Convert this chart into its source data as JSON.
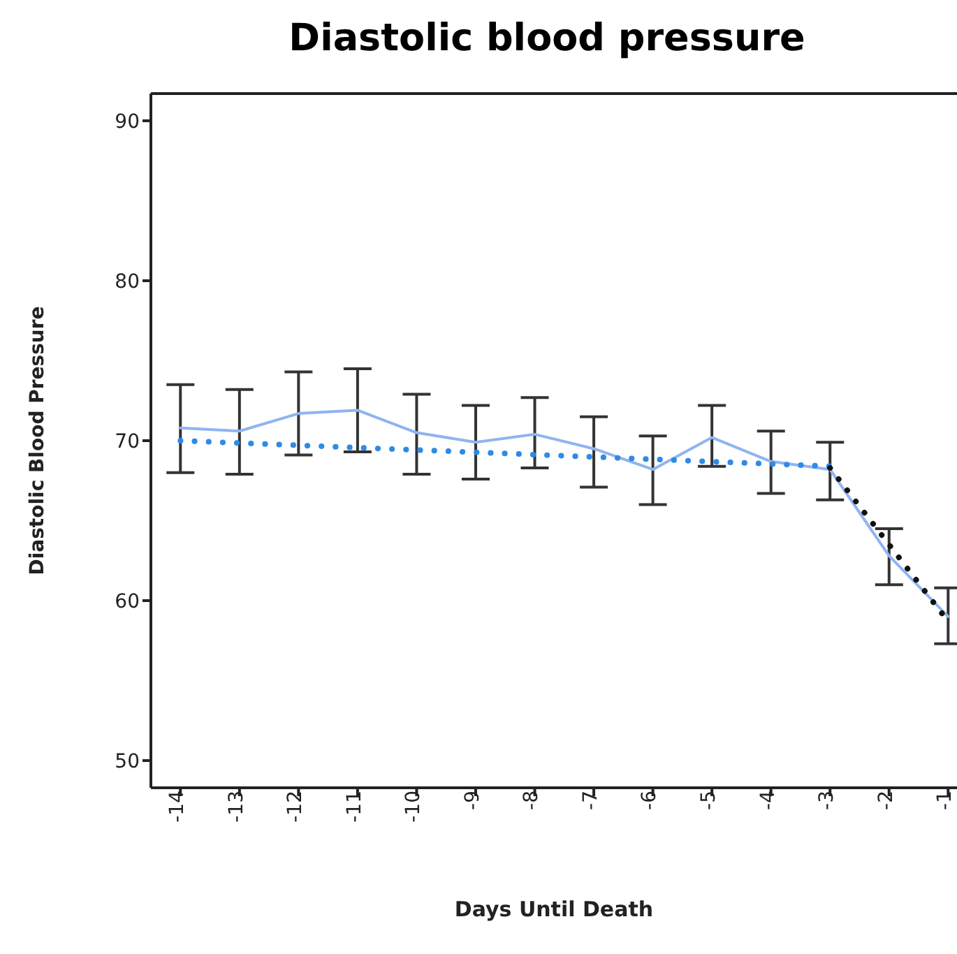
{
  "chart_data": {
    "type": "line",
    "title": "Diastolic blood pressure",
    "xlabel": "Days Until Death",
    "ylabel": "Diastolic Blood Pressure",
    "x": [
      -14,
      -13,
      -12,
      -11,
      -10,
      -9,
      -8,
      -7,
      -6,
      -5,
      -4,
      -3,
      -2,
      -1
    ],
    "series": [
      {
        "color": "#8fb4f0",
        "line_style": "solid",
        "values": [
          70.8,
          70.6,
          71.7,
          71.9,
          70.5,
          69.9,
          70.4,
          69.5,
          68.2,
          70.2,
          68.7,
          68.2,
          62.8,
          59.0
        ],
        "errors": [
          [
            68.0,
            73.5
          ],
          [
            67.9,
            73.2
          ],
          [
            69.1,
            74.3
          ],
          [
            69.3,
            74.5
          ],
          [
            67.9,
            72.9
          ],
          [
            67.6,
            72.2
          ],
          [
            68.3,
            72.7
          ],
          [
            67.1,
            71.5
          ],
          [
            66.0,
            70.3
          ],
          [
            68.4,
            72.2
          ],
          [
            66.7,
            70.6
          ],
          [
            66.3,
            69.9
          ],
          [
            61.0,
            64.5
          ],
          [
            57.3,
            60.8
          ]
        ]
      },
      {
        "type": "line",
        "color": "#2f8ae6",
        "line_style": "dotted",
        "x": [
          -14,
          -3
        ],
        "values": [
          70.0,
          68.4
        ]
      },
      {
        "type": "line",
        "color": "#111111",
        "line_style": "dotted",
        "x": [
          -3,
          -1
        ],
        "values": [
          68.3,
          58.7
        ]
      }
    ],
    "xlim": [
      -14.5,
      -0.85
    ],
    "xticks": [
      -14,
      -13,
      -12,
      -11,
      -10,
      -9,
      -8,
      -7,
      -6,
      -5,
      -4,
      -3,
      -2,
      -1
    ],
    "ylim": [
      48.3,
      91.7
    ],
    "yticks": [
      50,
      60,
      70,
      80,
      90
    ],
    "grid": false,
    "legend": false,
    "marker": "none"
  }
}
